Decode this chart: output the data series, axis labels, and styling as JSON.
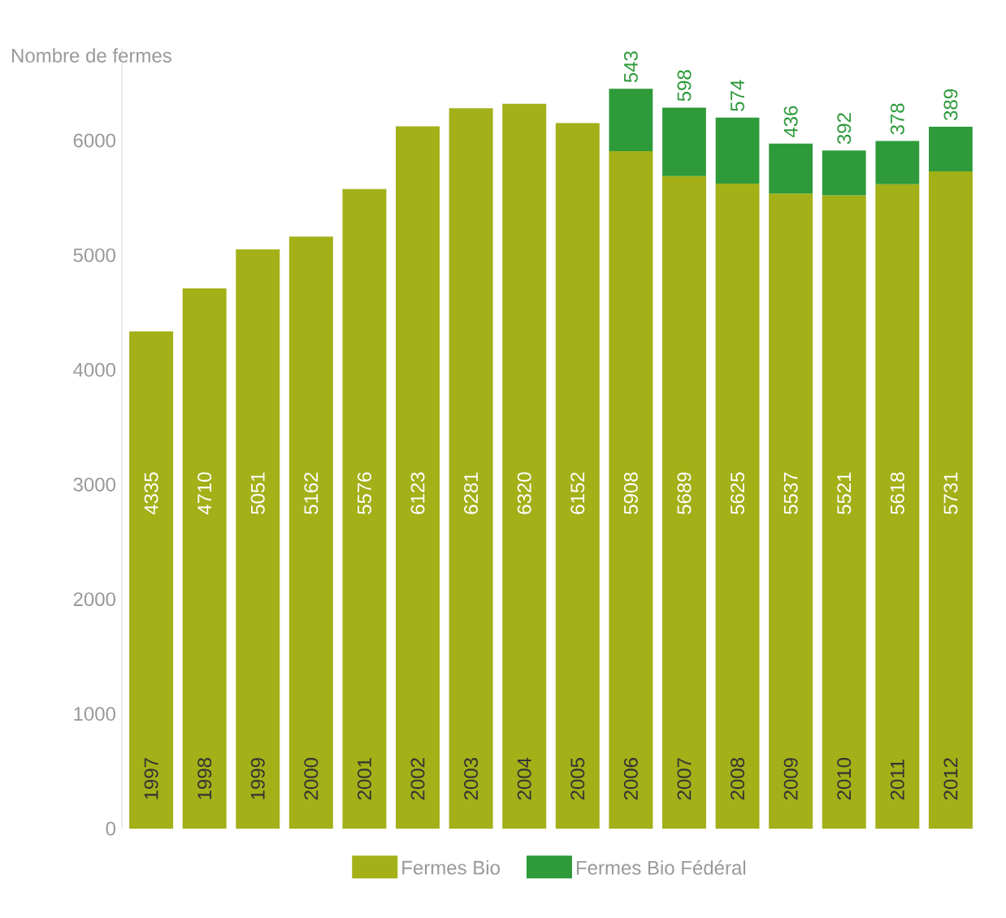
{
  "chart_data": {
    "type": "bar",
    "stacked": true,
    "ylabel": "Nombre de fermes",
    "categories": [
      "1997",
      "1998",
      "1999",
      "2000",
      "2001",
      "2002",
      "2003",
      "2004",
      "2005",
      "2006",
      "2007",
      "2008",
      "2009",
      "2010",
      "2011",
      "2012"
    ],
    "series": [
      {
        "name": "Fermes Bio",
        "color": "#a3b018",
        "values": [
          4335,
          4710,
          5051,
          5162,
          5576,
          6123,
          6281,
          6320,
          6152,
          5908,
          5689,
          5625,
          5537,
          5521,
          5618,
          5731
        ]
      },
      {
        "name": "Fermes Bio Fédéral",
        "color": "#2e9a3a",
        "values": [
          null,
          null,
          null,
          null,
          null,
          null,
          null,
          null,
          null,
          543,
          598,
          574,
          436,
          392,
          378,
          389
        ]
      }
    ],
    "ylim": [
      0,
      6800
    ],
    "yticks": [
      0,
      1000,
      2000,
      3000,
      4000,
      5000,
      6000
    ],
    "data_labels": true,
    "legend": "bottom",
    "grid": false
  }
}
